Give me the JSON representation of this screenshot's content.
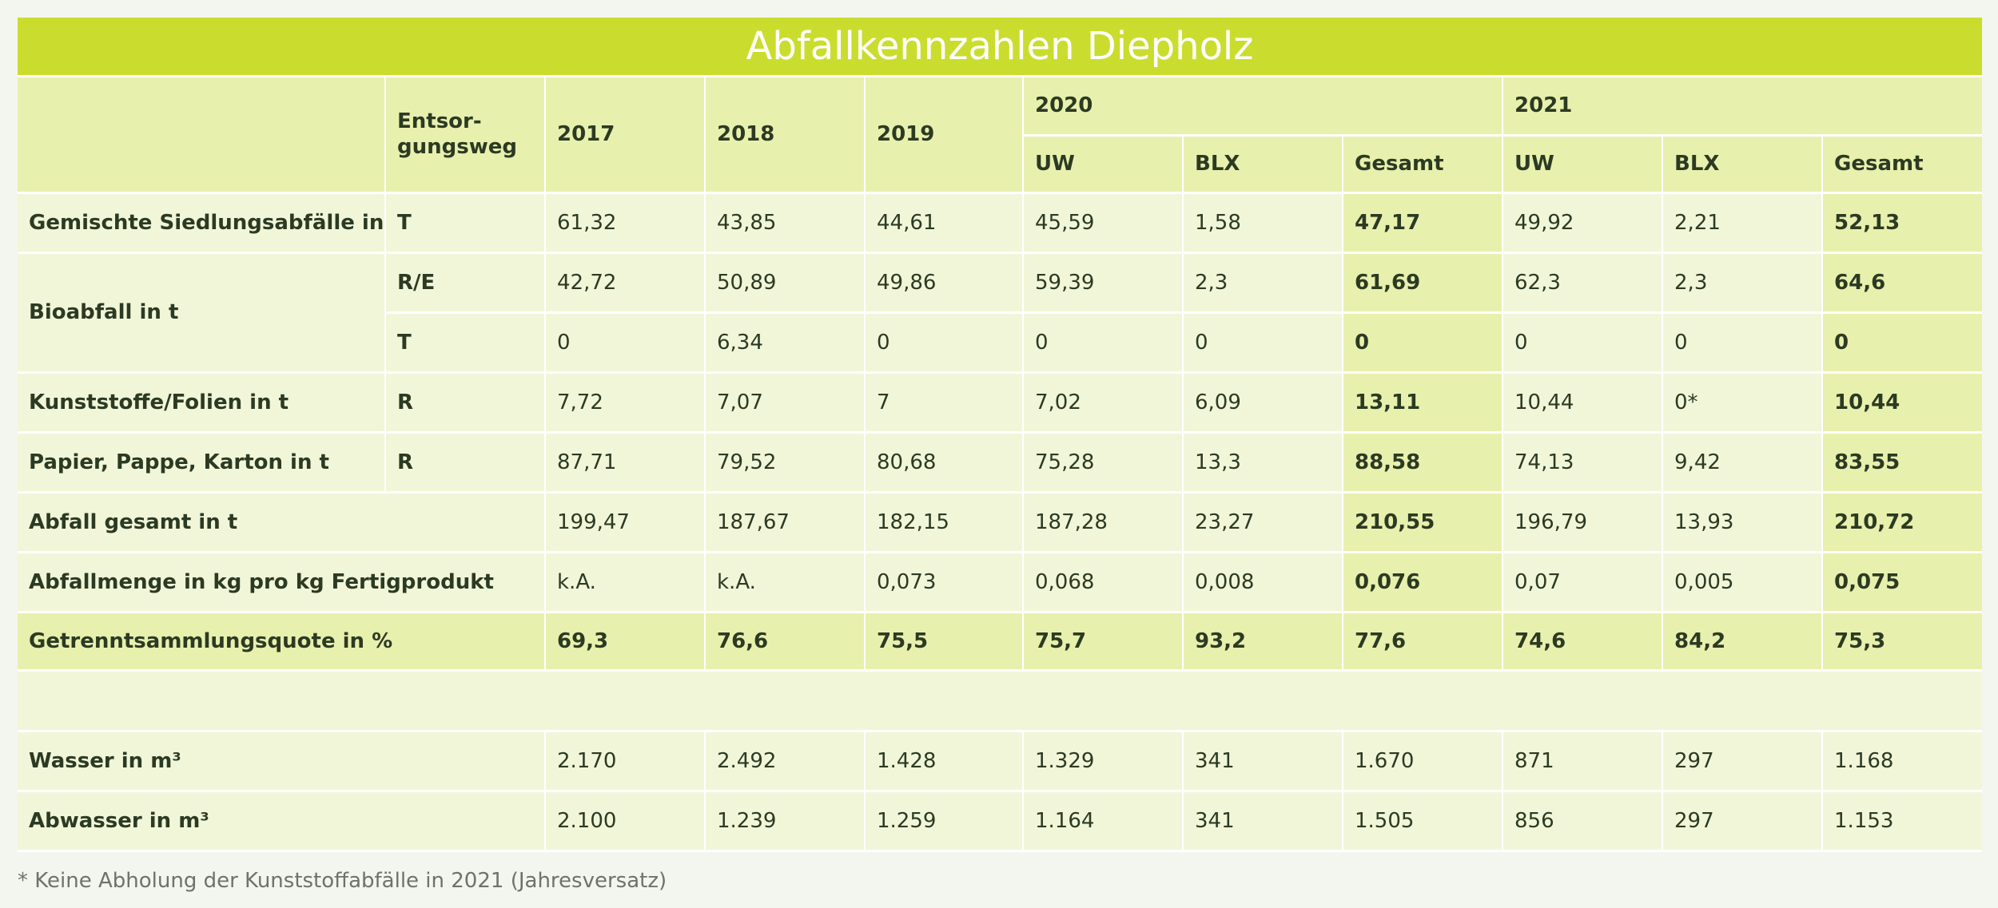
{
  "title": "Abfallkennzahlen Diepholz",
  "header": {
    "disposal": "Entsor-\ngungsweg",
    "y2017": "2017",
    "y2018": "2018",
    "y2019": "2019",
    "y2020": "2020",
    "y2021": "2021",
    "uw": "UW",
    "blx": "BLX",
    "total": "Gesamt"
  },
  "rows": [
    {
      "label": "Gemischte Siedlungsabfälle in t",
      "way": "T",
      "v": [
        "61,32",
        "43,85",
        "44,61",
        "45,59",
        "1,58",
        "47,17",
        "49,92",
        "2,21",
        "52,13"
      ]
    },
    {
      "label": "Bioabfall in t",
      "way": "R/E",
      "v": [
        "42,72",
        "50,89",
        "49,86",
        "59,39",
        "2,3",
        "61,69",
        "62,3",
        "2,3",
        "64,6"
      ]
    },
    {
      "label": "",
      "way": "T",
      "v": [
        "0",
        "6,34",
        "0",
        "0",
        "0",
        "0",
        "0",
        "0",
        "0"
      ]
    },
    {
      "label": "Kunststoffe/Folien in t",
      "way": "R",
      "v": [
        "7,72",
        "7,07",
        "7",
        "7,02",
        "6,09",
        "13,11",
        "10,44",
        "0*",
        "10,44"
      ]
    },
    {
      "label": "Papier, Pappe, Karton in t",
      "way": "R",
      "v": [
        "87,71",
        "79,52",
        "80,68",
        "75,28",
        "13,3",
        "88,58",
        "74,13",
        "9,42",
        "83,55"
      ]
    },
    {
      "label": "Abfall gesamt in t",
      "v": [
        "199,47",
        "187,67",
        "182,15",
        "187,28",
        "23,27",
        "210,55",
        "196,79",
        "13,93",
        "210,72"
      ]
    },
    {
      "label": "Abfallmenge in kg pro kg Fertigprodukt",
      "v": [
        "k.A.",
        "k.A.",
        "0,073",
        "0,068",
        "0,008",
        "0,076",
        "0,07",
        "0,005",
        "0,075"
      ]
    },
    {
      "label": "Getrenntsammlungsquote in %",
      "v": [
        "69,3",
        "76,6",
        "75,5",
        "75,7",
        "93,2",
        "77,6",
        "74,6",
        "84,2",
        "75,3"
      ]
    },
    {
      "label": "Wasser in m³",
      "v": [
        "2.170",
        "2.492",
        "1.428",
        "1.329",
        "341",
        "1.670",
        "871",
        "297",
        "1.168"
      ]
    },
    {
      "label": "Abwasser in m³",
      "v": [
        "2.100",
        "1.239",
        "1.259",
        "1.164",
        "341",
        "1.505",
        "856",
        "297",
        "1.153"
      ]
    }
  ],
  "footnote": "* Keine Abholung der Kunststoffabfälle in 2021 (Jahresversatz)"
}
